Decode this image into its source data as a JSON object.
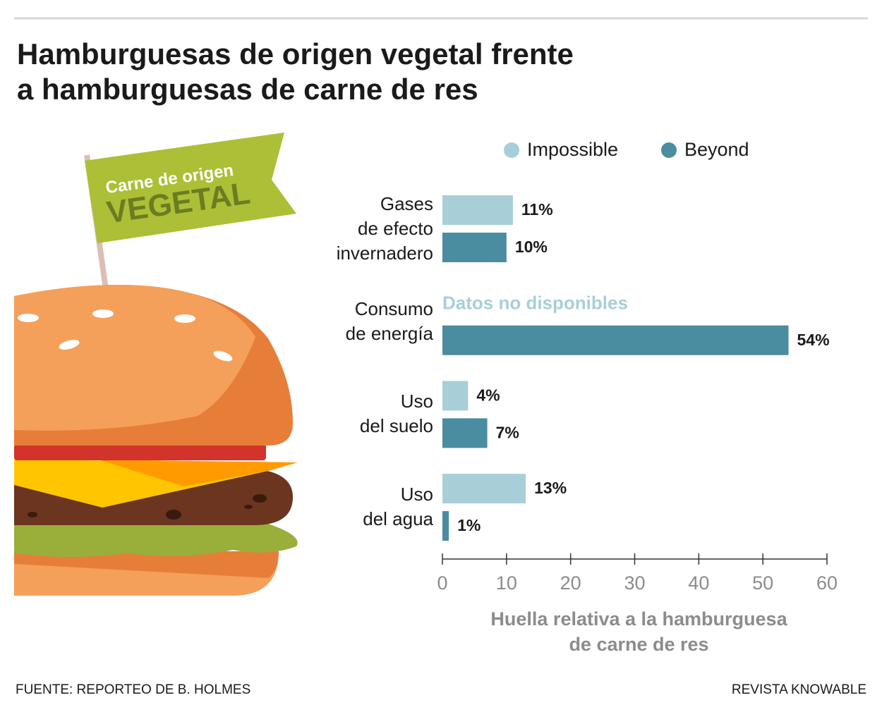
{
  "chart_data": {
    "type": "hbar",
    "title": "Hamburguesas de origen vegetal frente\na hamburguesas de carne de res",
    "categories": [
      "Gases\nde efecto\ninvernadero",
      "Consumo\nde energía",
      "Uso\ndel suelo",
      "Uso\ndel agua"
    ],
    "series": [
      {
        "name": "Impossible",
        "color": "#a8cfd8",
        "values": [
          11,
          null,
          4,
          13
        ],
        "value_labels": [
          "11%",
          null,
          "4%",
          "13%"
        ]
      },
      {
        "name": "Beyond",
        "color": "#4a8ca0",
        "values": [
          10,
          54,
          7,
          1
        ],
        "value_labels": [
          "10%",
          "54%",
          "7%",
          "1%"
        ]
      }
    ],
    "annotation": "Datos no disponibles",
    "xlim": [
      0,
      60
    ],
    "xticks": [
      0,
      10,
      20,
      30,
      40,
      50,
      60
    ],
    "xlabel": "Huella relativa a la hamburguesa\nde carne de res",
    "legend": "top",
    "source": "FUENTE: REPORTEO DE B. HOLMES",
    "credit": "REVISTA KNOWABLE"
  },
  "illustration": {
    "flag_text": "Carne de origen",
    "flag_title": "VEGETAL"
  }
}
